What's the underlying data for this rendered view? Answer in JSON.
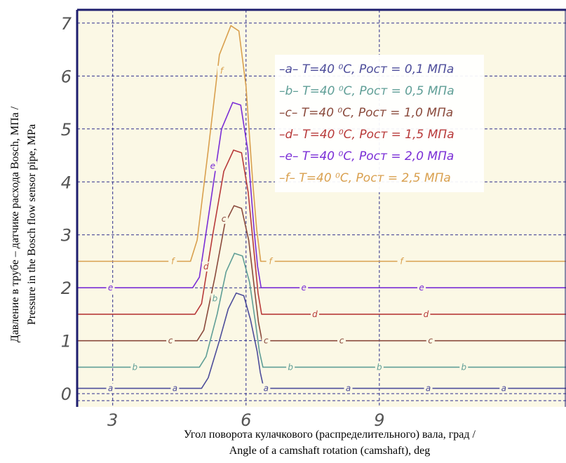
{
  "chart_data": {
    "type": "line",
    "xlabel_lines": [
      "Угол поворота кулачкового (распределительного) вала, град /",
      "Angle of a camshaft rotation (camshaft), deg"
    ],
    "ylabel_lines": [
      "Давление в  трубе – датчике расхода Bosch, МПа /",
      "Pressure in the Bosch flow sensor pipe, MPa"
    ],
    "xlim": [
      2.2,
      13.2
    ],
    "ylim": [
      -0.25,
      7.25
    ],
    "x_ticks": [
      3,
      6,
      9
    ],
    "y_ticks": [
      0,
      1,
      2,
      3,
      4,
      5,
      6,
      7
    ],
    "grid": true,
    "legend_position": "top-right",
    "colors": {
      "background": "#fbf8e5",
      "grid": "#2c2c8c",
      "axis_frame": "#1e1e6e",
      "tick_label": "#555555"
    },
    "series": [
      {
        "id": "a",
        "label": "–a–  T=40 ⁰C, Pост = 0,1 МПа",
        "color": "#4d4d9a",
        "base": 0.1,
        "peak": 1.9,
        "x": [
          2.2,
          4.0,
          5.0,
          5.15,
          5.4,
          5.6,
          5.78,
          5.95,
          6.1,
          6.25,
          6.32,
          6.4,
          13.2
        ],
        "y": [
          0.1,
          0.1,
          0.1,
          0.3,
          1.0,
          1.6,
          1.9,
          1.85,
          1.4,
          0.8,
          0.4,
          0.1,
          0.1
        ],
        "marks": [
          [
            2.95,
            0.1
          ],
          [
            4.4,
            0.1
          ],
          [
            6.45,
            0.1
          ],
          [
            8.3,
            0.1
          ],
          [
            10.1,
            0.1
          ],
          [
            11.8,
            0.1
          ]
        ]
      },
      {
        "id": "b",
        "label": "–b–  T=40 ⁰C, Pост = 0,5 МПа",
        "color": "#5f9e96",
        "base": 0.5,
        "peak": 2.65,
        "x": [
          2.2,
          4.0,
          4.95,
          5.1,
          5.35,
          5.55,
          5.74,
          5.92,
          6.08,
          6.22,
          6.3,
          6.38,
          13.2
        ],
        "y": [
          0.5,
          0.5,
          0.5,
          0.7,
          1.5,
          2.3,
          2.65,
          2.6,
          2.1,
          1.3,
          0.8,
          0.5,
          0.5
        ],
        "marks": [
          [
            3.5,
            0.5
          ],
          [
            5.3,
            1.8
          ],
          [
            7.0,
            0.5
          ],
          [
            9.0,
            0.5
          ],
          [
            10.9,
            0.5
          ]
        ]
      },
      {
        "id": "c",
        "label": "–c–  T=40 ⁰C, Pост = 1,0 МПа",
        "color": "#8a4a3c",
        "base": 1.0,
        "peak": 3.55,
        "x": [
          2.2,
          4.0,
          4.9,
          5.05,
          5.3,
          5.52,
          5.73,
          5.9,
          6.06,
          6.2,
          6.28,
          6.36,
          13.2
        ],
        "y": [
          1.0,
          1.0,
          1.0,
          1.2,
          2.2,
          3.2,
          3.55,
          3.5,
          2.9,
          1.9,
          1.35,
          1.0,
          1.0
        ],
        "marks": [
          [
            4.3,
            1.0
          ],
          [
            5.5,
            3.3
          ],
          [
            6.45,
            1.0
          ],
          [
            8.15,
            1.0
          ],
          [
            10.15,
            1.0
          ]
        ]
      },
      {
        "id": "d",
        "label": "–d–  T=40 ⁰C, Pост = 1,5 МПа",
        "color": "#b83a3a",
        "base": 1.5,
        "peak": 4.6,
        "x": [
          2.2,
          4.0,
          4.85,
          5.0,
          5.25,
          5.5,
          5.72,
          5.9,
          6.05,
          6.2,
          6.27,
          6.35,
          13.2
        ],
        "y": [
          1.5,
          1.5,
          1.5,
          1.7,
          3.0,
          4.2,
          4.6,
          4.55,
          3.8,
          2.5,
          1.9,
          1.5,
          1.5
        ],
        "marks": [
          [
            5.1,
            2.4
          ],
          [
            7.55,
            1.5
          ],
          [
            10.05,
            1.5
          ]
        ]
      },
      {
        "id": "e",
        "label": "–e–  T=40 ⁰C, Pост = 2,0 МПа",
        "color": "#7a2ed6",
        "base": 2.0,
        "peak": 5.5,
        "x": [
          2.2,
          4.0,
          4.8,
          4.95,
          5.2,
          5.45,
          5.7,
          5.88,
          6.04,
          6.18,
          6.26,
          6.34,
          13.2
        ],
        "y": [
          2.0,
          2.0,
          2.0,
          2.2,
          3.6,
          5.0,
          5.5,
          5.45,
          4.6,
          3.1,
          2.4,
          2.0,
          2.0
        ],
        "marks": [
          [
            2.95,
            2.0
          ],
          [
            5.25,
            4.3
          ],
          [
            7.3,
            2.0
          ],
          [
            9.95,
            2.0
          ]
        ]
      },
      {
        "id": "f",
        "label": "–f–  T=40 ⁰C, Pост = 2,5 МПа",
        "color": "#d9a04e",
        "base": 2.5,
        "peak": 6.95,
        "x": [
          2.2,
          4.0,
          4.75,
          4.9,
          5.15,
          5.4,
          5.66,
          5.84,
          6.0,
          6.15,
          6.24,
          6.33,
          13.2
        ],
        "y": [
          2.5,
          2.5,
          2.5,
          2.9,
          4.6,
          6.4,
          6.95,
          6.85,
          5.8,
          4.0,
          3.1,
          2.5,
          2.5
        ],
        "marks": [
          [
            4.35,
            2.5
          ],
          [
            5.45,
            6.1
          ],
          [
            6.55,
            2.5
          ],
          [
            9.5,
            2.5
          ]
        ]
      }
    ]
  }
}
